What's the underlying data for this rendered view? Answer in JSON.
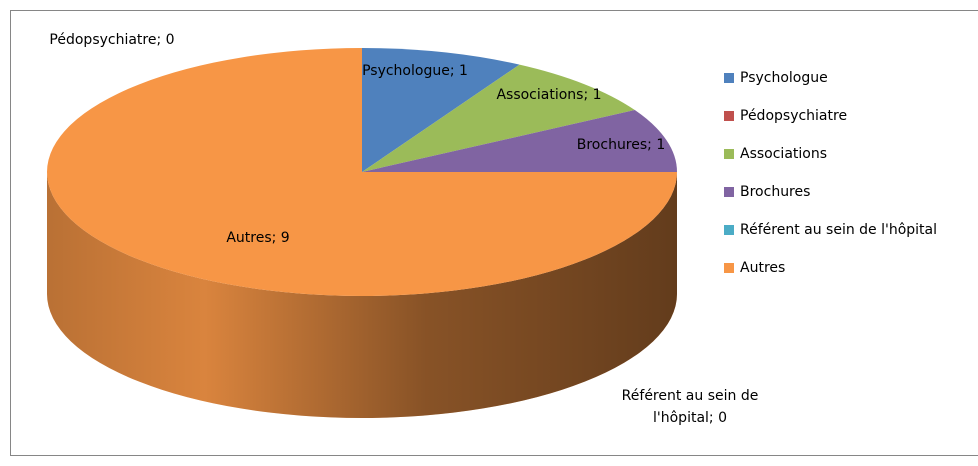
{
  "chart_data": {
    "type": "pie",
    "categories": [
      "Psychologue",
      "Pédopsychiatre",
      "Associations",
      "Brochures",
      "Référent au sein de l'hôpital",
      "Autres"
    ],
    "values": [
      1,
      0,
      1,
      1,
      0,
      9
    ],
    "value_labels": [
      "Psychologue; 1",
      "Pédopsychiatre; 0",
      "Associations; 1",
      "Brochures; 1",
      "Référent au sein de l'hôpital; 0",
      "Autres; 9"
    ],
    "colors": [
      "#4f81bd",
      "#c0504d",
      "#9bbb59",
      "#8064a2",
      "#4bacc6",
      "#f79646"
    ],
    "legend": "right"
  }
}
